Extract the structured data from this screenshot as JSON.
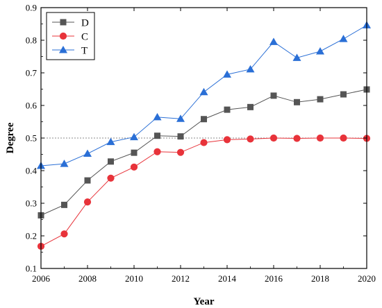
{
  "chart_data": {
    "type": "line",
    "title": "",
    "xlabel": "Year",
    "ylabel": "Degree",
    "xlim": [
      2006,
      2020
    ],
    "ylim": [
      0.1,
      0.9
    ],
    "x_ticks": [
      "2006",
      "2008",
      "2010",
      "2012",
      "2014",
      "2016",
      "2018",
      "2020"
    ],
    "y_ticks": [
      "0.1",
      "0.2",
      "0.3",
      "0.4",
      "0.5",
      "0.6",
      "0.7",
      "0.8",
      "0.9"
    ],
    "grid": false,
    "legend_position": "top-left",
    "reference_line": 0.5,
    "x": [
      2006,
      2007,
      2008,
      2009,
      2010,
      2011,
      2012,
      2013,
      2014,
      2015,
      2016,
      2017,
      2018,
      2019,
      2020
    ],
    "series": [
      {
        "name": "D",
        "marker": "square",
        "color": "#555555",
        "values": [
          0.263,
          0.295,
          0.37,
          0.428,
          0.455,
          0.507,
          0.505,
          0.558,
          0.587,
          0.595,
          0.63,
          0.61,
          0.619,
          0.634,
          0.649
        ]
      },
      {
        "name": "C",
        "marker": "circle",
        "color": "#e8333a",
        "values": [
          0.168,
          0.206,
          0.304,
          0.377,
          0.411,
          0.458,
          0.456,
          0.486,
          0.495,
          0.497,
          0.5,
          0.499,
          0.5,
          0.5,
          0.499
        ]
      },
      {
        "name": "T",
        "marker": "triangle",
        "color": "#2a6fd6",
        "values": [
          0.415,
          0.421,
          0.452,
          0.488,
          0.503,
          0.564,
          0.559,
          0.641,
          0.695,
          0.711,
          0.795,
          0.746,
          0.766,
          0.804,
          0.846
        ]
      }
    ]
  }
}
